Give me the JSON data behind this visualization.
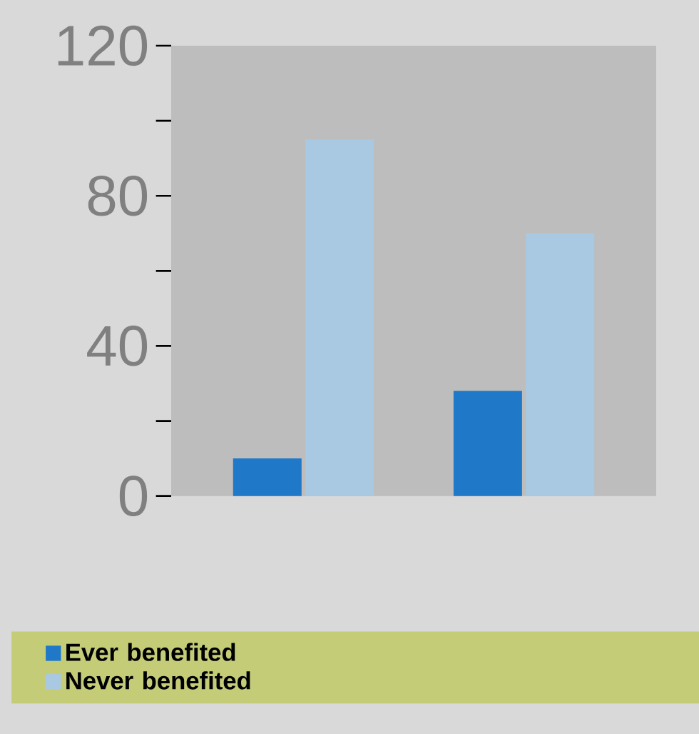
{
  "chart_data": {
    "type": "bar",
    "categories": [
      null,
      null
    ],
    "series": [
      {
        "name": "Ever benefited",
        "color": "#1f78c8",
        "values": [
          10,
          28
        ]
      },
      {
        "name": "Never benefited",
        "color": "#a9c9e2",
        "values": [
          95,
          70
        ]
      }
    ],
    "ylim": [
      0,
      120
    ],
    "yticks": [
      0,
      {
        "value": 20,
        "label": null
      },
      40,
      {
        "value": 60,
        "label": null
      },
      80,
      {
        "value": 100,
        "label": null
      },
      120
    ],
    "legend": "bottom"
  }
}
